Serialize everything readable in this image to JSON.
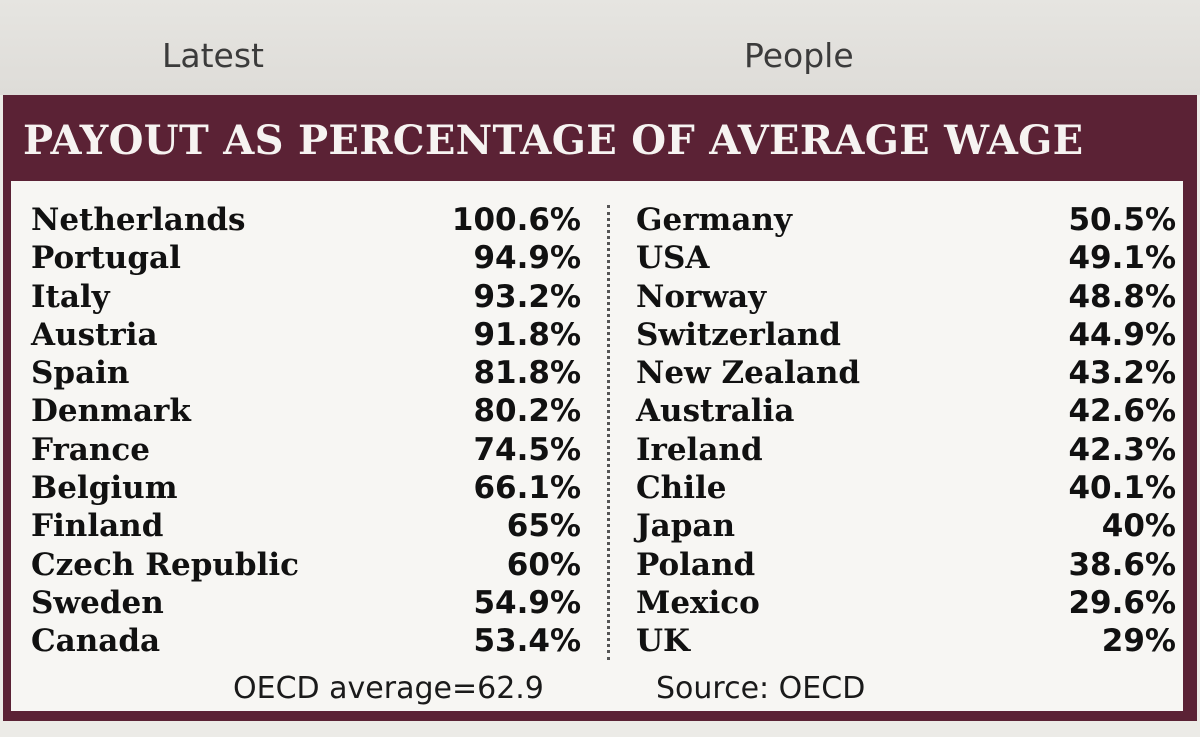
{
  "tabs": {
    "latest": "Latest",
    "people": "People"
  },
  "table": {
    "title": "PAYOUT AS PERCENTAGE OF AVERAGE WAGE",
    "left": [
      {
        "country": "Netherlands",
        "value": "100.6%"
      },
      {
        "country": "Portugal",
        "value": "94.9%"
      },
      {
        "country": "Italy",
        "value": "93.2%"
      },
      {
        "country": "Austria",
        "value": "91.8%"
      },
      {
        "country": "Spain",
        "value": "81.8%"
      },
      {
        "country": "Denmark",
        "value": "80.2%"
      },
      {
        "country": "France",
        "value": "74.5%"
      },
      {
        "country": "Belgium",
        "value": "66.1%"
      },
      {
        "country": "Finland",
        "value": "65%"
      },
      {
        "country": "Czech Republic",
        "value": "60%"
      },
      {
        "country": "Sweden",
        "value": "54.9%"
      },
      {
        "country": "Canada",
        "value": "53.4%"
      }
    ],
    "right": [
      {
        "country": "Germany",
        "value": "50.5%"
      },
      {
        "country": "USA",
        "value": "49.1%"
      },
      {
        "country": "Norway",
        "value": "48.8%"
      },
      {
        "country": "Switzerland",
        "value": "44.9%"
      },
      {
        "country": "New Zealand",
        "value": "43.2%"
      },
      {
        "country": "Australia",
        "value": "42.6%"
      },
      {
        "country": "Ireland",
        "value": "42.3%"
      },
      {
        "country": "Chile",
        "value": "40.1%"
      },
      {
        "country": "Japan",
        "value": "40%"
      },
      {
        "country": "Poland",
        "value": "38.6%"
      },
      {
        "country": "Mexico",
        "value": "29.6%"
      },
      {
        "country": "UK",
        "value": "29%"
      }
    ],
    "oecd_average": "OECD average=62.9",
    "source": "Source: OECD"
  },
  "colors": {
    "header_bg": "#5b2235",
    "card_bg": "#f7f6f3"
  }
}
